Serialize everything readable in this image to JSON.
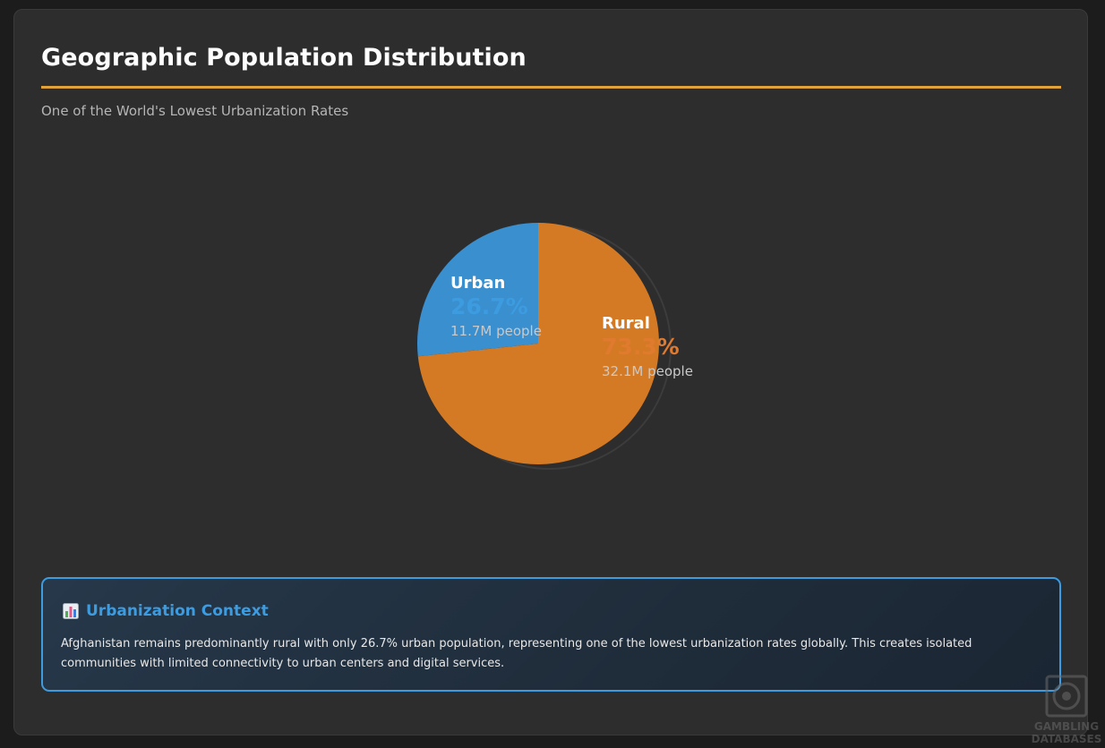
{
  "header": {
    "title": "Geographic Population Distribution",
    "subtitle": "One of the World's Lowest Urbanization Rates"
  },
  "colors": {
    "accent_rule": "#e0a23a",
    "urban": "#3a8fcf",
    "urban_label": "#3d9be0",
    "rural": "#d47a24",
    "rural_label": "#e07a2e",
    "context_border": "#3d9be0"
  },
  "chart_data": {
    "type": "pie",
    "title": "",
    "slices": [
      {
        "label": "Urban",
        "value": 26.7,
        "percent_label": "26.7%",
        "people": "11.7M people"
      },
      {
        "label": "Rural",
        "value": 73.3,
        "percent_label": "73.3%",
        "people": "32.1M people"
      }
    ]
  },
  "context": {
    "icon": "bar-chart-icon",
    "title": "Urbanization Context",
    "body": "Afghanistan remains predominantly rural with only 26.7% urban population, representing one of the lowest urbanization rates globally. This creates isolated communities with limited connectivity to urban centers and digital services."
  },
  "watermark": {
    "line1": "GAMBLING",
    "line2": "DATABASES"
  }
}
